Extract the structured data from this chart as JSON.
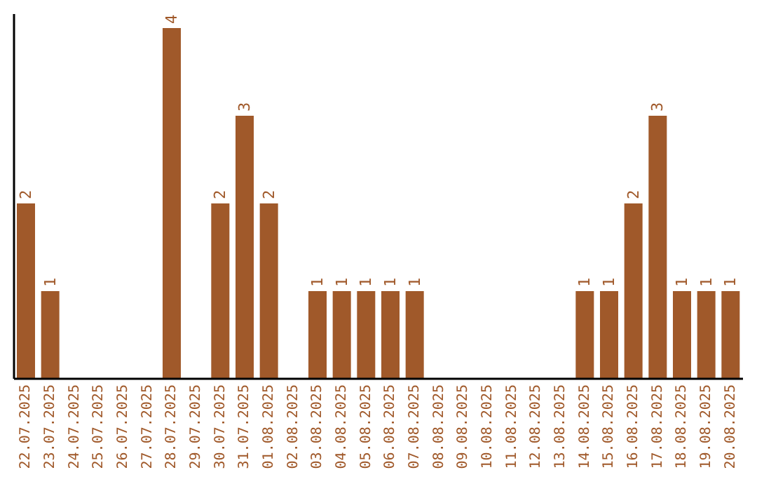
{
  "chart_data": {
    "type": "bar",
    "categories": [
      "22.07.2025",
      "23.07.2025",
      "24.07.2025",
      "25.07.2025",
      "26.07.2025",
      "27.07.2025",
      "28.07.2025",
      "29.07.2025",
      "30.07.2025",
      "31.07.2025",
      "01.08.2025",
      "02.08.2025",
      "03.08.2025",
      "04.08.2025",
      "05.08.2025",
      "06.08.2025",
      "07.08.2025",
      "08.08.2025",
      "09.08.2025",
      "10.08.2025",
      "11.08.2025",
      "12.08.2025",
      "13.08.2025",
      "14.08.2025",
      "15.08.2025",
      "16.08.2025",
      "17.08.2025",
      "18.08.2025",
      "19.08.2025",
      "20.08.2025"
    ],
    "values": [
      2,
      1,
      0,
      0,
      0,
      0,
      4,
      0,
      2,
      3,
      2,
      0,
      1,
      1,
      1,
      1,
      1,
      0,
      0,
      0,
      0,
      0,
      0,
      1,
      1,
      2,
      3,
      1,
      1,
      1
    ],
    "value_labels": [
      "2",
      "1",
      null,
      null,
      null,
      null,
      "4",
      null,
      "2",
      "3",
      "2",
      null,
      "1",
      "1",
      "1",
      "1",
      "1",
      null,
      null,
      null,
      null,
      null,
      null,
      "1",
      "1",
      "2",
      "3",
      "1",
      "1",
      "1"
    ],
    "color": "#a0592a",
    "grid": false,
    "legend": false,
    "tick_labels": "x"
  }
}
